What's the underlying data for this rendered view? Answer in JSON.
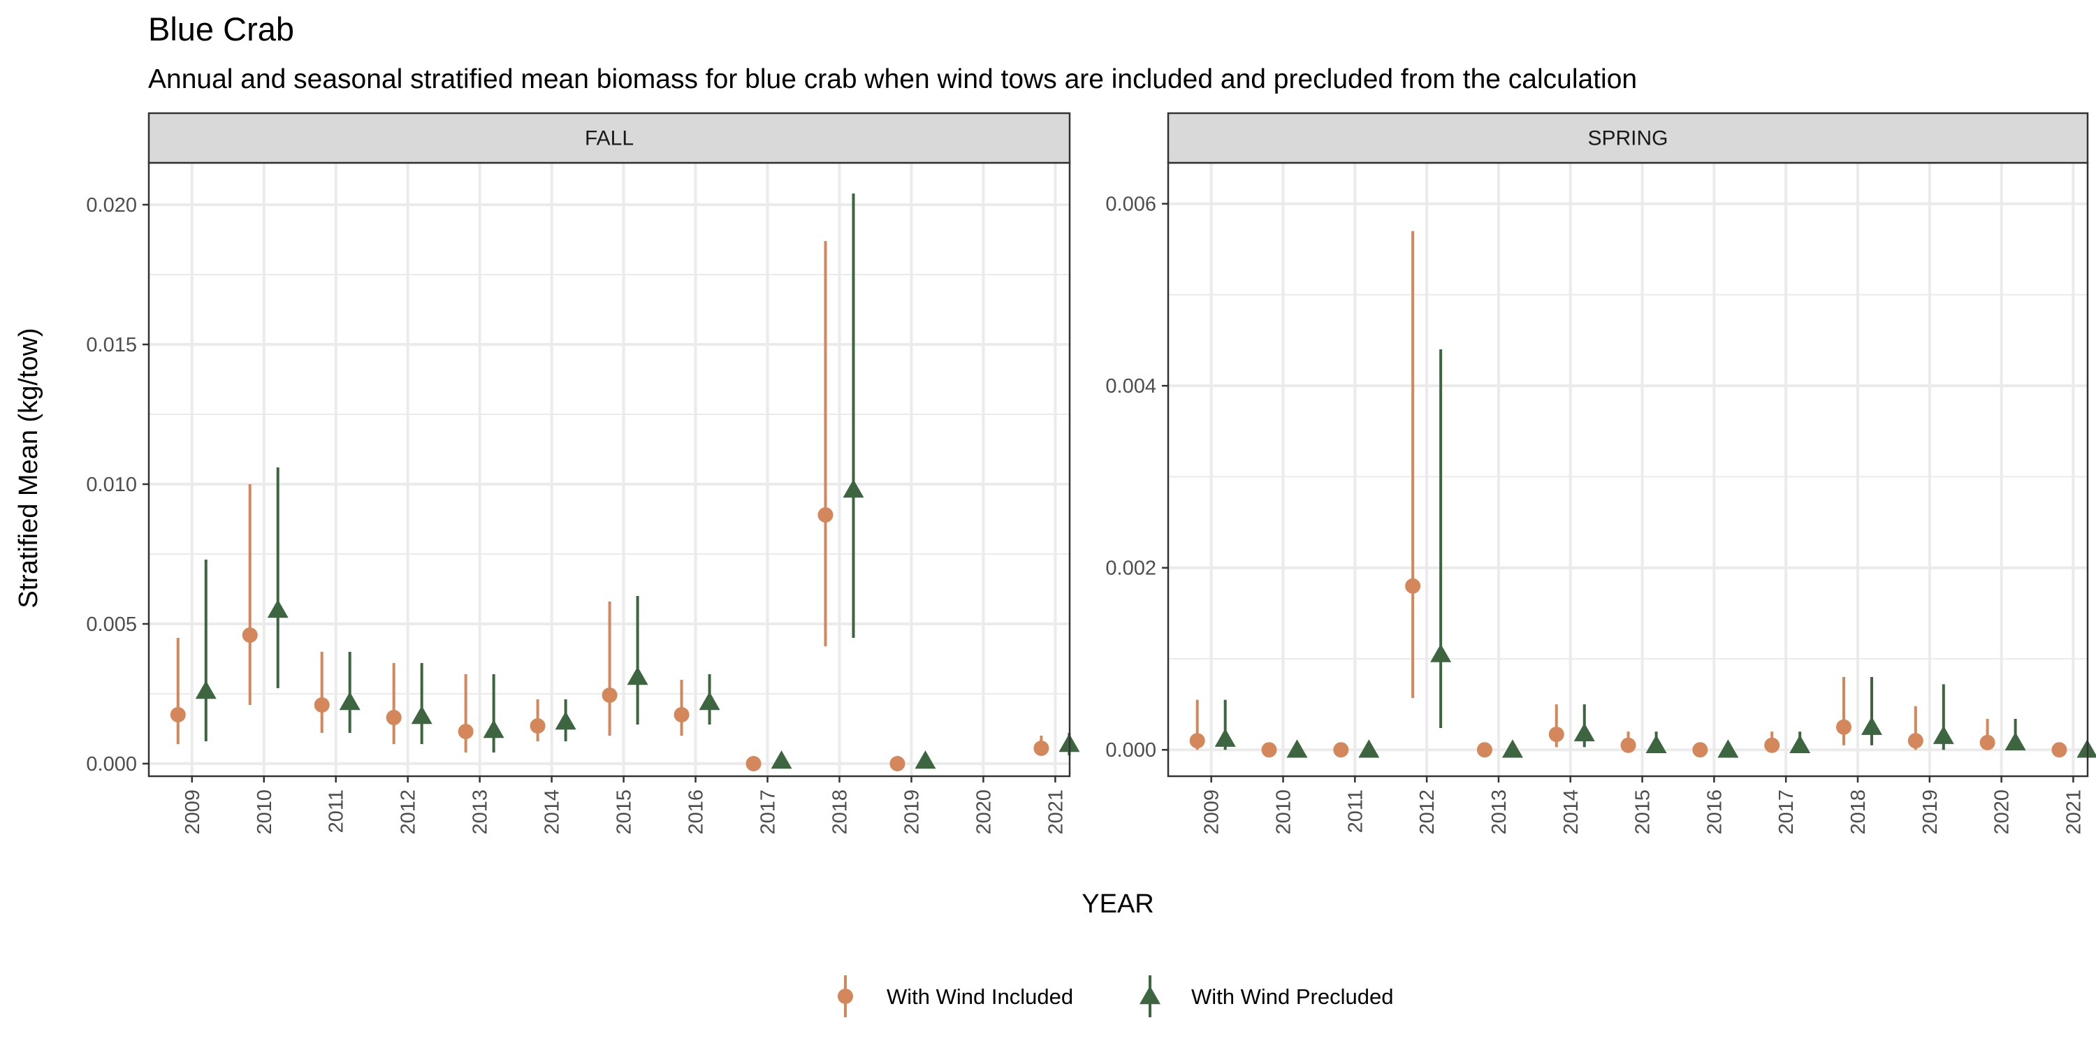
{
  "title": "Blue Crab",
  "subtitle": "Annual and seasonal stratified mean biomass for blue crab when wind tows are included and precluded from the calculation",
  "colors": {
    "with_wind_included": "#D4875A",
    "with_wind_precluded": "#3D6640",
    "strip_fill": "#D9D9D9",
    "grid": "#EBEBEB",
    "panel_border": "#333333"
  },
  "chart_data": [
    {
      "type": "scatter",
      "panel": "FALL",
      "xlabel": "YEAR",
      "ylabel": "Stratified Mean (kg/tow)",
      "categories": [
        "2009",
        "2010",
        "2011",
        "2012",
        "2013",
        "2014",
        "2015",
        "2016",
        "2017",
        "2018",
        "2019",
        "2020",
        "2021"
      ],
      "ylim": [
        -0.00045,
        0.0215
      ],
      "yticks": [
        0.0,
        0.005,
        0.01,
        0.015,
        0.02
      ],
      "ytick_labels": [
        "0.000",
        "0.005",
        "0.010",
        "0.015",
        "0.020"
      ],
      "grid": true,
      "series": [
        {
          "name": "With Wind Included",
          "marker": "circle",
          "mean": [
            0.00175,
            0.0046,
            0.0021,
            0.00165,
            0.00115,
            0.00135,
            0.00245,
            0.00175,
            0.0,
            0.0089,
            0.0,
            null,
            0.00055
          ],
          "lower": [
            0.0007,
            0.0021,
            0.0011,
            0.0007,
            0.0004,
            0.0008,
            0.001,
            0.001,
            0.0,
            0.0042,
            0.0,
            null,
            0.0003
          ],
          "upper": [
            0.0045,
            0.01,
            0.004,
            0.0036,
            0.0032,
            0.0023,
            0.0058,
            0.003,
            0.0,
            0.0187,
            0.0,
            null,
            0.001
          ]
        },
        {
          "name": "With Wind Precluded",
          "marker": "triangle",
          "mean": [
            0.0026,
            0.0055,
            0.0022,
            0.0017,
            0.0012,
            0.0015,
            0.0031,
            0.0022,
            0.0001,
            0.0098,
            0.0001,
            null,
            0.0007
          ],
          "lower": [
            0.0008,
            0.0027,
            0.0011,
            0.0007,
            0.0004,
            0.0008,
            0.0014,
            0.0014,
            0.0,
            0.0045,
            0.0,
            null,
            0.0003
          ],
          "upper": [
            0.0073,
            0.0106,
            0.004,
            0.0036,
            0.0032,
            0.0023,
            0.006,
            0.0032,
            0.0001,
            0.0204,
            0.0001,
            null,
            0.0011
          ]
        }
      ]
    },
    {
      "type": "scatter",
      "panel": "SPRING",
      "xlabel": "YEAR",
      "ylabel": "Stratified Mean (kg/tow)",
      "categories": [
        "2009",
        "2010",
        "2011",
        "2012",
        "2013",
        "2014",
        "2015",
        "2016",
        "2017",
        "2018",
        "2019",
        "2020",
        "2021"
      ],
      "ylim": [
        -0.00029,
        0.00645
      ],
      "yticks": [
        0.0,
        0.002,
        0.004,
        0.006
      ],
      "ytick_labels": [
        "0.000",
        "0.002",
        "0.004",
        "0.006"
      ],
      "grid": true,
      "series": [
        {
          "name": "With Wind Included",
          "marker": "circle",
          "mean": [
            0.0001,
            0.0,
            0.0,
            0.0018,
            0.0,
            0.00017,
            5e-05,
            0.0,
            5e-05,
            0.00025,
            0.0001,
            8e-05,
            0.0
          ],
          "lower": [
            0.0,
            0.0,
            0.0,
            0.00057,
            0.0,
            3e-05,
            0.0,
            0.0,
            0.0,
            5e-05,
            0.0,
            0.0,
            0.0
          ],
          "upper": [
            0.00055,
            0.0,
            0.0,
            0.0057,
            0.0,
            0.0005,
            0.0002,
            0.0,
            0.0002,
            0.0008,
            0.00048,
            0.00034,
            0.0
          ]
        },
        {
          "name": "With Wind Precluded",
          "marker": "triangle",
          "mean": [
            0.00012,
            0.0,
            0.0,
            0.00105,
            0.0,
            0.00018,
            5e-05,
            0.0,
            5e-05,
            0.00025,
            0.00015,
            8e-05,
            0.0
          ],
          "lower": [
            0.0,
            0.0,
            0.0,
            0.00024,
            0.0,
            3e-05,
            0.0,
            0.0,
            0.0,
            5e-05,
            0.0,
            0.0,
            0.0
          ],
          "upper": [
            0.00055,
            0.0,
            0.0,
            0.0044,
            0.0,
            0.0005,
            0.0002,
            0.0,
            0.0002,
            0.0008,
            0.00072,
            0.00034,
            0.0
          ]
        }
      ]
    }
  ],
  "legend": {
    "position": "bottom",
    "items": [
      {
        "label": "With Wind Included",
        "marker": "circle"
      },
      {
        "label": "With Wind Precluded",
        "marker": "triangle"
      }
    ]
  }
}
